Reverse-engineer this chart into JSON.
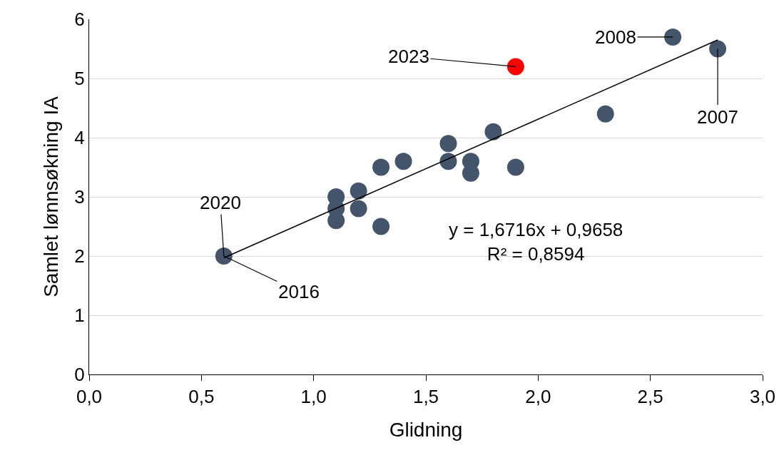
{
  "chart_data": {
    "type": "scatter",
    "xlabel": "Glidning",
    "ylabel": "Samlet lønnsøkning IA",
    "series": [
      {
        "color": "#44546a",
        "x": [
          0.6,
          1.1,
          1.1,
          1.1,
          1.2,
          1.2,
          1.3,
          1.3,
          1.4,
          1.6,
          1.6,
          1.7,
          1.7,
          1.8,
          1.9,
          2.3,
          2.6,
          2.8
        ],
        "values": [
          2.0,
          3.0,
          2.8,
          2.6,
          3.1,
          2.8,
          3.5,
          2.5,
          3.6,
          3.9,
          3.6,
          3.6,
          3.4,
          4.1,
          3.5,
          4.4,
          5.7,
          5.5
        ]
      },
      {
        "color": "#ff0000",
        "x": [
          1.9
        ],
        "values": [
          5.2
        ]
      },
      {
        "type": "line",
        "marker": "none",
        "color": "#000000",
        "x": [
          0.6,
          2.8
        ],
        "values": [
          1.97,
          5.65
        ]
      }
    ],
    "xlim": [
      0,
      3
    ],
    "xticks": [
      {
        "value": 0,
        "label": "0,0"
      },
      {
        "value": 0.5,
        "label": "0,5"
      },
      {
        "value": 1,
        "label": "1,0"
      },
      {
        "value": 1.5,
        "label": "1,5"
      },
      {
        "value": 2,
        "label": "2,0"
      },
      {
        "value": 2.5,
        "label": "2,5"
      },
      {
        "value": 3,
        "label": "3,0"
      }
    ],
    "ylim": [
      0,
      6
    ],
    "yticks": [
      0,
      1,
      2,
      3,
      4,
      5,
      6
    ],
    "grid": "y",
    "marker": "circle",
    "annotations": [
      {
        "text": "2020",
        "x": 0.6,
        "y": 2.0
      },
      {
        "text": "2016",
        "x": 0.6,
        "y": 2.0
      },
      {
        "text": "2023",
        "x": 1.9,
        "y": 5.2
      },
      {
        "text": "2008",
        "x": 2.6,
        "y": 5.7
      },
      {
        "text": "2007",
        "x": 2.8,
        "y": 5.5
      },
      "y = 1,6716x + 0,9658\nR² = 0,8594"
    ]
  }
}
